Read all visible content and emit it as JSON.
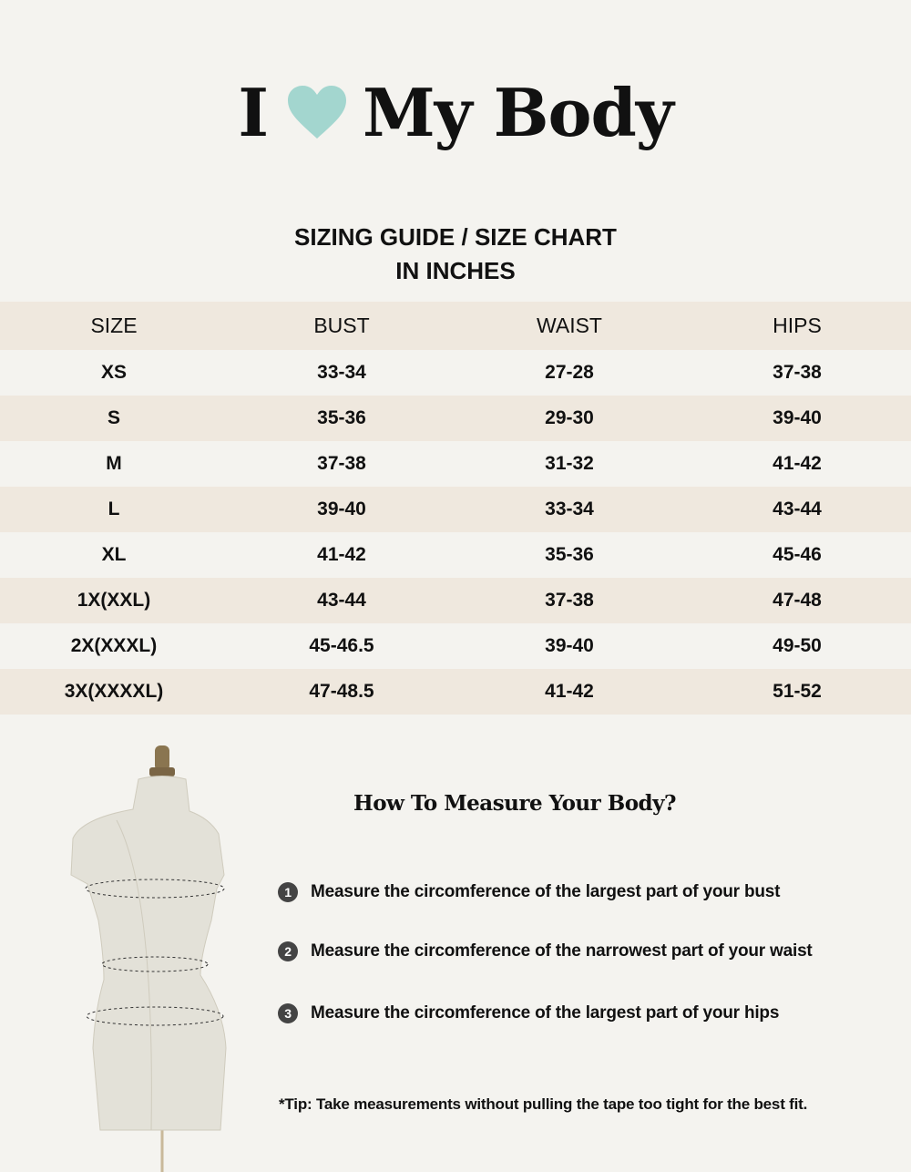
{
  "brand": {
    "pre": "I",
    "heart_icon": "heart-icon",
    "heart_color": "#a3d6cf",
    "post": "My Body"
  },
  "title": {
    "line1": "SIZING GUIDE / SIZE CHART",
    "line2": "IN INCHES"
  },
  "table": {
    "headers": [
      "SIZE",
      "BUST",
      "WAIST",
      "HIPS"
    ],
    "rows": [
      [
        "XS",
        "33-34",
        "27-28",
        "37-38"
      ],
      [
        "S",
        "35-36",
        "29-30",
        "39-40"
      ],
      [
        "M",
        "37-38",
        "31-32",
        "41-42"
      ],
      [
        "L",
        "39-40",
        "33-34",
        "43-44"
      ],
      [
        "XL",
        "41-42",
        "35-36",
        "45-46"
      ],
      [
        "1X(XXL)",
        "43-44",
        "37-38",
        "47-48"
      ],
      [
        "2X(XXXL)",
        "45-46.5",
        "39-40",
        "49-50"
      ],
      [
        "3X(XXXXL)",
        "47-48.5",
        "41-42",
        "51-52"
      ]
    ],
    "stripe_color": "#efe8de"
  },
  "howto": {
    "heading": "How To Measure Your Body?",
    "steps": [
      {
        "num": "1",
        "text": "Measure the circomference of the largest part of your bust"
      },
      {
        "num": "2",
        "text": "Measure the circomference of the narrowest part of your waist"
      },
      {
        "num": "3",
        "text": "Measure the circomference of the largest part of your hips"
      }
    ],
    "tip": "*Tip: Take measurements without pulling the tape too tight for the best fit."
  }
}
